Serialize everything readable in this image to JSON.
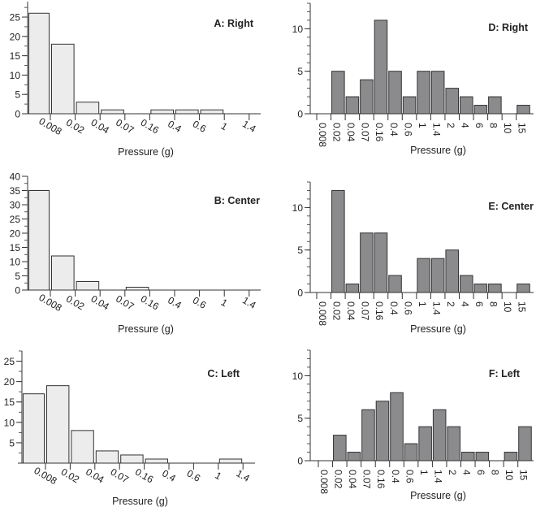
{
  "colors": {
    "light_fill": "#ececec",
    "dark_fill": "#8b8b8d",
    "stroke": "#333333"
  },
  "chart_data": [
    {
      "id": "A",
      "type": "bar",
      "title": "A: Right",
      "xlabel": "Pressure (g)",
      "ylabel": "",
      "categories": [
        "0.008",
        "0.02",
        "0.04",
        "0.07",
        "0.16",
        "0.4",
        "0.6",
        "1",
        "1.4"
      ],
      "values": [
        26,
        18,
        3,
        1,
        0,
        1,
        1,
        1,
        0
      ],
      "ylim": [
        0,
        29
      ],
      "yticks": [
        0,
        5,
        10,
        15,
        20,
        25
      ],
      "fill": "light"
    },
    {
      "id": "B",
      "type": "bar",
      "title": "B: Center",
      "xlabel": "Pressure (g)",
      "ylabel": "",
      "categories": [
        "0.008",
        "0.02",
        "0.04",
        "0.07",
        "0.16",
        "0.4",
        "0.6",
        "1",
        "1.4"
      ],
      "values": [
        35,
        12,
        3,
        0,
        1,
        0,
        0,
        0,
        0
      ],
      "ylim": [
        0,
        40
      ],
      "yticks": [
        0,
        5,
        10,
        15,
        20,
        25,
        30,
        35,
        40
      ],
      "fill": "light"
    },
    {
      "id": "C",
      "type": "bar",
      "title": "C: Left",
      "xlabel": "Pressure (g)",
      "ylabel": "",
      "categories": [
        "0.008",
        "0.02",
        "0.04",
        "0.07",
        "0.16",
        "0.4",
        "0.6",
        "1",
        "1.4"
      ],
      "values": [
        17,
        19,
        8,
        3,
        2,
        1,
        0,
        0,
        1
      ],
      "ylim": [
        0,
        27.5
      ],
      "yticks": [
        5,
        10,
        15,
        20,
        25
      ],
      "fill": "light"
    },
    {
      "id": "D",
      "type": "bar",
      "title": "D: Right",
      "xlabel": "Pressure (g)",
      "ylabel": "",
      "categories": [
        "0.008",
        "0.02",
        "0.04",
        "0.07",
        "0.16",
        "0.4",
        "0.6",
        "1",
        "1.4",
        "2",
        "4",
        "6",
        "8",
        "10",
        "15"
      ],
      "values": [
        0,
        5,
        2,
        4,
        11,
        5,
        2,
        5,
        5,
        3,
        2,
        1,
        2,
        0,
        1
      ],
      "ylim": [
        0,
        13
      ],
      "yticks": [
        0,
        5,
        10
      ],
      "fill": "dark"
    },
    {
      "id": "E",
      "type": "bar",
      "title": "E: Center",
      "xlabel": "Pressure (g)",
      "ylabel": "",
      "categories": [
        "0.008",
        "0.02",
        "0.04",
        "0.07",
        "0.16",
        "0.4",
        "0.6",
        "1",
        "1.4",
        "2",
        "4",
        "6",
        "8",
        "10",
        "15"
      ],
      "values": [
        0,
        12,
        1,
        7,
        7,
        2,
        0,
        4,
        4,
        5,
        2,
        1,
        1,
        0,
        1
      ],
      "ylim": [
        0,
        13
      ],
      "yticks": [
        0,
        5,
        10
      ],
      "fill": "dark"
    },
    {
      "id": "F",
      "type": "bar",
      "title": "F: Left",
      "xlabel": "Pressure (g)",
      "ylabel": "",
      "categories": [
        "0.008",
        "0.02",
        "0.04",
        "0.07",
        "0.16",
        "0.4",
        "0.6",
        "1",
        "1.4",
        "2",
        "4",
        "6",
        "8",
        "10",
        "15"
      ],
      "values": [
        0,
        3,
        1,
        6,
        7,
        8,
        2,
        4,
        6,
        4,
        1,
        1,
        0,
        1,
        4
      ],
      "ylim": [
        0,
        13
      ],
      "yticks": [
        0,
        5,
        10
      ],
      "fill": "dark"
    }
  ]
}
